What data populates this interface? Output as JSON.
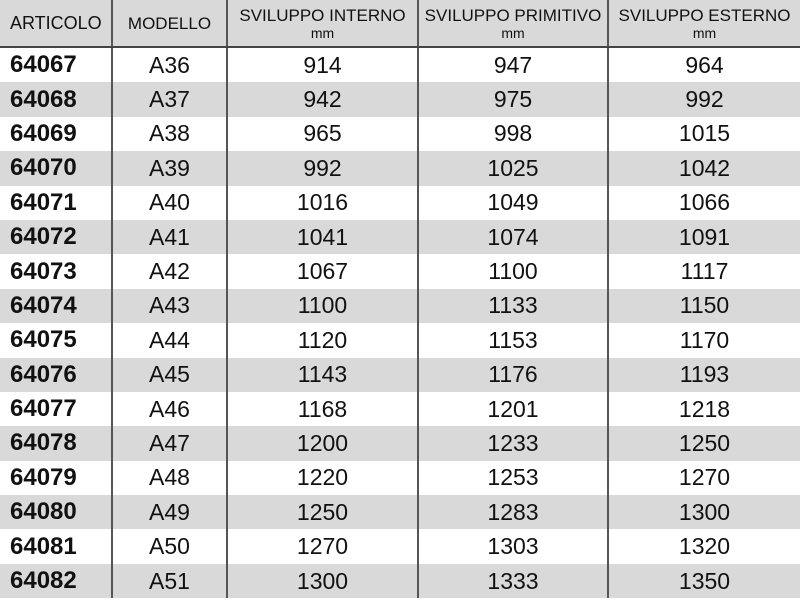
{
  "columns": [
    {
      "label": "ARTICOLO",
      "unit": ""
    },
    {
      "label": "MODELLO",
      "unit": ""
    },
    {
      "label": "SVILUPPO INTERNO",
      "unit": "mm"
    },
    {
      "label": "SVILUPPO PRIMITIVO",
      "unit": "mm"
    },
    {
      "label": "SVILUPPO ESTERNO",
      "unit": "mm"
    }
  ],
  "rows": [
    [
      "64067",
      "A36",
      "914",
      "947",
      "964"
    ],
    [
      "64068",
      "A37",
      "942",
      "975",
      "992"
    ],
    [
      "64069",
      "A38",
      "965",
      "998",
      "1015"
    ],
    [
      "64070",
      "A39",
      "992",
      "1025",
      "1042"
    ],
    [
      "64071",
      "A40",
      "1016",
      "1049",
      "1066"
    ],
    [
      "64072",
      "A41",
      "1041",
      "1074",
      "1091"
    ],
    [
      "64073",
      "A42",
      "1067",
      "1100",
      "1117"
    ],
    [
      "64074",
      "A43",
      "1100",
      "1133",
      "1150"
    ],
    [
      "64075",
      "A44",
      "1120",
      "1153",
      "1170"
    ],
    [
      "64076",
      "A45",
      "1143",
      "1176",
      "1193"
    ],
    [
      "64077",
      "A46",
      "1168",
      "1201",
      "1218"
    ],
    [
      "64078",
      "A47",
      "1200",
      "1233",
      "1250"
    ],
    [
      "64079",
      "A48",
      "1220",
      "1253",
      "1270"
    ],
    [
      "64080",
      "A49",
      "1250",
      "1283",
      "1300"
    ],
    [
      "64081",
      "A50",
      "1270",
      "1303",
      "1320"
    ],
    [
      "64082",
      "A51",
      "1300",
      "1333",
      "1350"
    ]
  ],
  "colors": {
    "header_bg": "#d9d9da",
    "stripe_bg": "#d9d9da"
  }
}
